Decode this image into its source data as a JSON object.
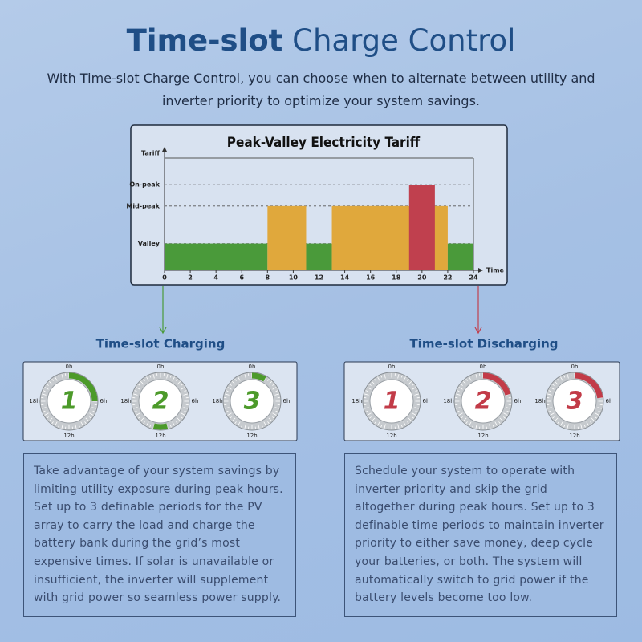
{
  "header": {
    "title_bold": "Time-slot",
    "title_rest": "Charge Control",
    "subtitle": "With Time-slot Charge Control, you can choose when to alternate between utility and inverter priority to optimize your system savings."
  },
  "chart_data": {
    "type": "bar",
    "title": "Peak-Valley Electricity Tariff",
    "x_label": "Time",
    "y_label": "Tariff",
    "xlim": [
      0,
      24
    ],
    "xticks": [
      0,
      2,
      4,
      6,
      8,
      10,
      12,
      14,
      16,
      18,
      20,
      22,
      24
    ],
    "ylim": [
      0,
      4.4
    ],
    "yticks": [
      {
        "value": 1,
        "label": "Valley"
      },
      {
        "value": 2.4,
        "label": "Mid-peak"
      },
      {
        "value": 3.2,
        "label": "On-peak"
      }
    ],
    "bars": [
      {
        "start": 0,
        "end": 8,
        "value": 1,
        "color": "#4a9a3a"
      },
      {
        "start": 8,
        "end": 11,
        "value": 2.4,
        "color": "#e0a83c"
      },
      {
        "start": 11,
        "end": 13,
        "value": 1,
        "color": "#4a9a3a"
      },
      {
        "start": 13,
        "end": 22,
        "value": 2.4,
        "color": "#e0a83c"
      },
      {
        "start": 19,
        "end": 21,
        "value": 3.2,
        "color": "#c0404e"
      },
      {
        "start": 22,
        "end": 24,
        "value": 1,
        "color": "#4a9a3a"
      }
    ]
  },
  "clock_hours": [
    {
      "value": 0,
      "label": "0h"
    },
    {
      "value": 6,
      "label": "6h"
    },
    {
      "value": 12,
      "label": "12h"
    },
    {
      "value": 18,
      "label": "18h"
    }
  ],
  "charging": {
    "heading": "Time-slot Charging",
    "color": "#4c9a2a",
    "clocks": [
      {
        "label": "1",
        "periods": [
          [
            0,
            6
          ]
        ]
      },
      {
        "label": "2",
        "periods": [
          [
            11,
            13
          ]
        ]
      },
      {
        "label": "3",
        "periods": [
          [
            0,
            2
          ]
        ]
      }
    ],
    "text": "Take advantage of your system savings by limiting utility exposure during peak hours. Set up to 3 definable periods for the PV array to carry the load and charge the battery bank during the grid’s most expensive times. If solar is unavailable or insufficient, the inverter will supplement with grid power so seamless power supply."
  },
  "discharging": {
    "heading": "Time-slot Discharging",
    "color": "#c23b48",
    "clocks": [
      {
        "label": "1",
        "periods": []
      },
      {
        "label": "2",
        "periods": [
          [
            0,
            5
          ]
        ]
      },
      {
        "label": "3",
        "periods": [
          [
            0,
            5.5
          ]
        ]
      }
    ],
    "text": "Schedule your system to operate with inverter priority and skip the grid altogether during peak hours. Set up to 3 definable time periods to maintain inverter priority to either save money, deep cycle your batteries, or both. The system will automatically switch to grid power if the battery levels become too low."
  }
}
